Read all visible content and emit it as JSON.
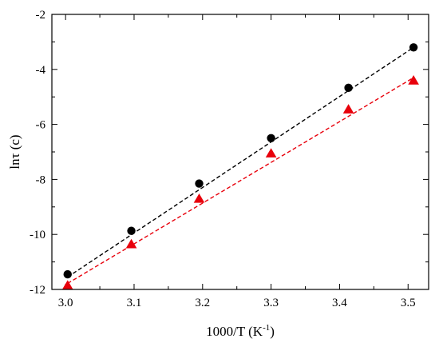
{
  "chart_data": {
    "type": "scatter",
    "title": "",
    "xlabel": "1000/T (K",
    "xlabel_sup": "-1",
    "xlabel_suffix": ")",
    "ylabel": "lnτ (c)",
    "xlim": [
      2.98,
      3.53
    ],
    "ylim": [
      -12,
      -2
    ],
    "xticks": [
      3.0,
      3.1,
      3.2,
      3.3,
      3.4,
      3.5
    ],
    "xtick_labels": [
      "3.0",
      "3.1",
      "3.2",
      "3.3",
      "3.4",
      "3.5"
    ],
    "yticks": [
      -12,
      -10,
      -8,
      -6,
      -4,
      -2
    ],
    "ytick_labels": [
      "-12",
      "-10",
      "-8",
      "-6",
      "-4",
      "-2"
    ],
    "grid": false,
    "legend": "none",
    "series": [
      {
        "marker": "circle",
        "color": "#000000",
        "x": [
          3.003,
          3.096,
          3.195,
          3.3,
          3.413,
          3.508
        ],
        "y": [
          -11.45,
          -9.87,
          -8.15,
          -6.5,
          -4.67,
          -3.2
        ],
        "fit": {
          "x": [
            3.003,
            3.508
          ],
          "y": [
            -11.55,
            -3.2
          ]
        }
      },
      {
        "marker": "triangle",
        "color": "#e8000b",
        "x": [
          3.003,
          3.096,
          3.195,
          3.3,
          3.413,
          3.508
        ],
        "y": [
          -11.85,
          -10.35,
          -8.7,
          -7.05,
          -5.45,
          -4.4
        ],
        "fit": {
          "x": [
            3.003,
            3.508
          ],
          "y": [
            -11.78,
            -4.3
          ]
        }
      }
    ]
  }
}
